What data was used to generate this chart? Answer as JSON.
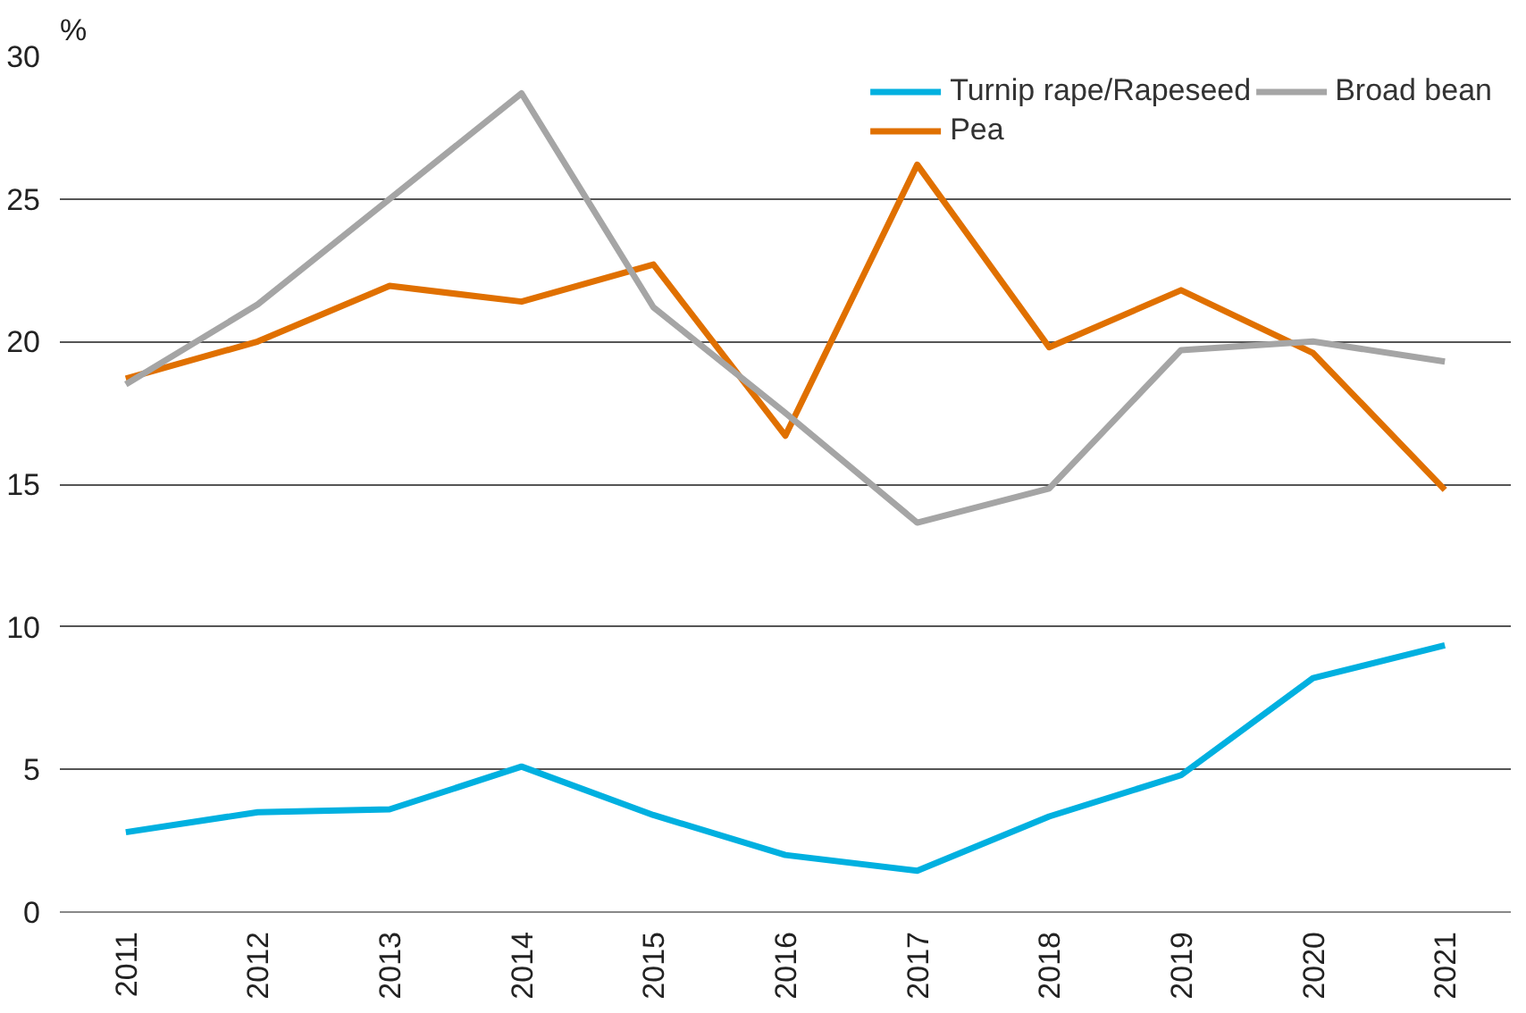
{
  "chart_data": {
    "type": "line",
    "ylabel": "%",
    "categories": [
      "2011",
      "2012",
      "2013",
      "2014",
      "2015",
      "2016",
      "2017",
      "2018",
      "2019",
      "2020",
      "2021"
    ],
    "series": [
      {
        "name": "Turnip rape/Rapeseed",
        "color": "#00b0e0",
        "values": [
          2.8,
          3.5,
          3.6,
          5.1,
          3.4,
          2.0,
          1.45,
          3.35,
          4.8,
          8.2,
          9.35
        ]
      },
      {
        "name": "Pea",
        "color": "#e07000",
        "values": [
          18.7,
          20.0,
          21.95,
          21.4,
          22.7,
          16.7,
          26.2,
          19.8,
          21.8,
          19.6,
          14.8
        ]
      },
      {
        "name": "Broad bean",
        "color": "#a5a5a5",
        "values": [
          18.5,
          21.3,
          25.0,
          28.7,
          21.2,
          17.5,
          13.65,
          14.85,
          19.7,
          20.0,
          19.3
        ]
      }
    ],
    "ylim": [
      0,
      30
    ],
    "yticks": [
      0,
      5,
      10,
      15,
      20,
      25,
      30
    ],
    "grid": "y",
    "legend": "top right",
    "marker": "none",
    "line_style": "solid"
  }
}
